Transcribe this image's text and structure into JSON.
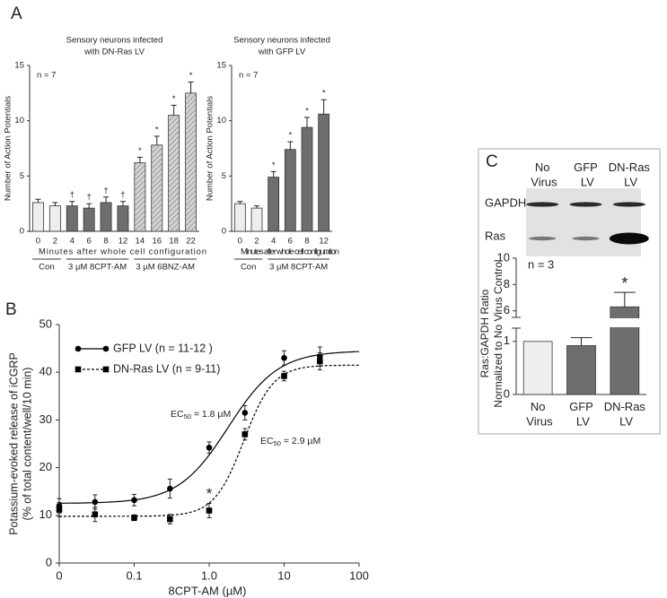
{
  "panel_labels": [
    "A",
    "B",
    "C"
  ],
  "chart_data": [
    {
      "type": "bar",
      "title": [
        "Sensory neurons infected",
        "with DN-Ras LV"
      ],
      "y_label": "Number of Action Potentials",
      "x_label": "Minutes after whole cell configuration",
      "n_label": "n = 7",
      "categories": [
        "0",
        "2",
        "4",
        "6",
        "8",
        "12",
        "14",
        "16",
        "18",
        "22"
      ],
      "values": [
        2.6,
        2.3,
        2.3,
        2.1,
        2.6,
        2.3,
        6.2,
        7.8,
        10.5,
        12.5
      ],
      "errors": [
        0.3,
        0.3,
        0.4,
        0.4,
        0.5,
        0.4,
        0.5,
        0.8,
        0.9,
        1.0
      ],
      "colors": [
        "#eeeeee",
        "#eeeeee",
        "#6e6e6e",
        "#6e6e6e",
        "#6e6e6e",
        "#6e6e6e",
        "#d4d4d4",
        "#d4d4d4",
        "#d4d4d4",
        "#d4d4d4"
      ],
      "hatched": [
        false,
        false,
        false,
        false,
        false,
        false,
        true,
        true,
        true,
        true
      ],
      "markers": [
        null,
        null,
        "†",
        "†",
        "†",
        "†",
        "*",
        "*",
        "*",
        "*"
      ],
      "groups": [
        {
          "label": "Con",
          "span": [
            0,
            1
          ]
        },
        {
          "label": "3 µM 8CPT-AM",
          "span": [
            2,
            5
          ]
        },
        {
          "label": "3 µM 6BNZ-AM",
          "span": [
            6,
            9
          ]
        }
      ],
      "ylim": [
        0,
        15
      ],
      "yticks": [
        0,
        5,
        10,
        15
      ]
    },
    {
      "type": "bar",
      "title": [
        "Sensory neurons infected",
        "with GFP LV"
      ],
      "y_label": "Number of Action Potentials",
      "x_label": "Minutes after whole cell configuration",
      "n_label": "n = 7",
      "categories": [
        "0",
        "2",
        "4",
        "6",
        "8",
        "12"
      ],
      "values": [
        2.5,
        2.1,
        4.9,
        7.4,
        9.4,
        10.6
      ],
      "errors": [
        0.2,
        0.2,
        0.5,
        0.7,
        0.9,
        1.3
      ],
      "colors": [
        "#eeeeee",
        "#eeeeee",
        "#6e6e6e",
        "#6e6e6e",
        "#6e6e6e",
        "#6e6e6e"
      ],
      "hatched": [
        false,
        false,
        false,
        false,
        false,
        false
      ],
      "markers": [
        null,
        null,
        "*",
        "*",
        "*",
        "*"
      ],
      "groups": [
        {
          "label": "Con",
          "span": [
            0,
            1
          ]
        },
        {
          "label": "3 µM 8CPT-AM",
          "span": [
            2,
            5
          ]
        }
      ],
      "ylim": [
        0,
        15
      ],
      "yticks": [
        0,
        5,
        10,
        15
      ]
    },
    {
      "type": "line",
      "y_label": [
        "Potassium-evoked release of iCGRP",
        "(% of total content/well/10 min)"
      ],
      "x_label": "8CPT-AM (µM)",
      "log_x": true,
      "x": [
        0,
        0.03,
        0.1,
        0.3,
        1,
        3,
        10,
        30
      ],
      "xlim": [
        0,
        100
      ],
      "xticks": [
        0,
        0.1,
        {
          "value": 1,
          "label": "1.0"
        },
        10,
        100
      ],
      "ylim": [
        0,
        50
      ],
      "yticks": [
        0,
        10,
        20,
        30,
        40,
        50
      ],
      "series": [
        {
          "name": "GFP LV (n = 11-12 )",
          "color": "#000000",
          "marker": "circle",
          "dashed": false,
          "values": [
            12,
            12.8,
            13.2,
            15.6,
            24.2,
            31.5,
            43,
            43.3
          ],
          "errors": [
            1.5,
            1.5,
            1.2,
            2,
            1.2,
            1.5,
            1.5,
            2
          ],
          "markers": [
            null,
            null,
            null,
            null,
            null,
            null,
            null,
            null
          ],
          "fit": {
            "bottom": 12.5,
            "top": 44.5,
            "ec50": 1.8,
            "hill": 1.3
          }
        },
        {
          "name": "DN-Ras  LV (n = 9-11)",
          "color": "#000000",
          "marker": "square",
          "dashed": true,
          "values": [
            11.2,
            10.2,
            9.5,
            9.2,
            11,
            27,
            39.2,
            42.3
          ],
          "errors": [
            1.5,
            1.5,
            0.6,
            1,
            1.5,
            1.2,
            1,
            1.8
          ],
          "markers": [
            null,
            null,
            null,
            null,
            "*",
            null,
            null,
            null
          ],
          "fit": {
            "bottom": 9.8,
            "top": 41.5,
            "ec50": 2.9,
            "hill": 2.2
          }
        }
      ],
      "annotations": [
        {
          "prefix": "EC",
          "sub": "50",
          "text": " = 1.8 µM"
        },
        {
          "prefix": "EC",
          "sub": "50",
          "text": " = 2.9 µM"
        }
      ]
    },
    {
      "type": "broken_bar",
      "blot_lanes": [
        "No Virus",
        "GFP LV",
        "DN-Ras LV"
      ],
      "blot_rows": [
        "GAPDH",
        "Ras"
      ],
      "y_label": [
        "Ras:GAPDH Ratio",
        "Normalized to No Virus Control"
      ],
      "n_label": "n = 3",
      "categories": [
        "No Virus",
        "GFP LV",
        "DN-Ras LV"
      ],
      "values": [
        1,
        0.92,
        6.3
      ],
      "errors": [
        null,
        0.15,
        1.1
      ],
      "colors": [
        "#eeeeee",
        "#6e6e6e",
        "#6e6e6e"
      ],
      "markers": [
        null,
        null,
        "*"
      ],
      "ylim": [
        0,
        10
      ],
      "ysegments": [
        [
          0,
          1.25
        ],
        [
          5.5,
          10
        ]
      ],
      "yticks": [
        0,
        1,
        6,
        8,
        10
      ]
    }
  ]
}
